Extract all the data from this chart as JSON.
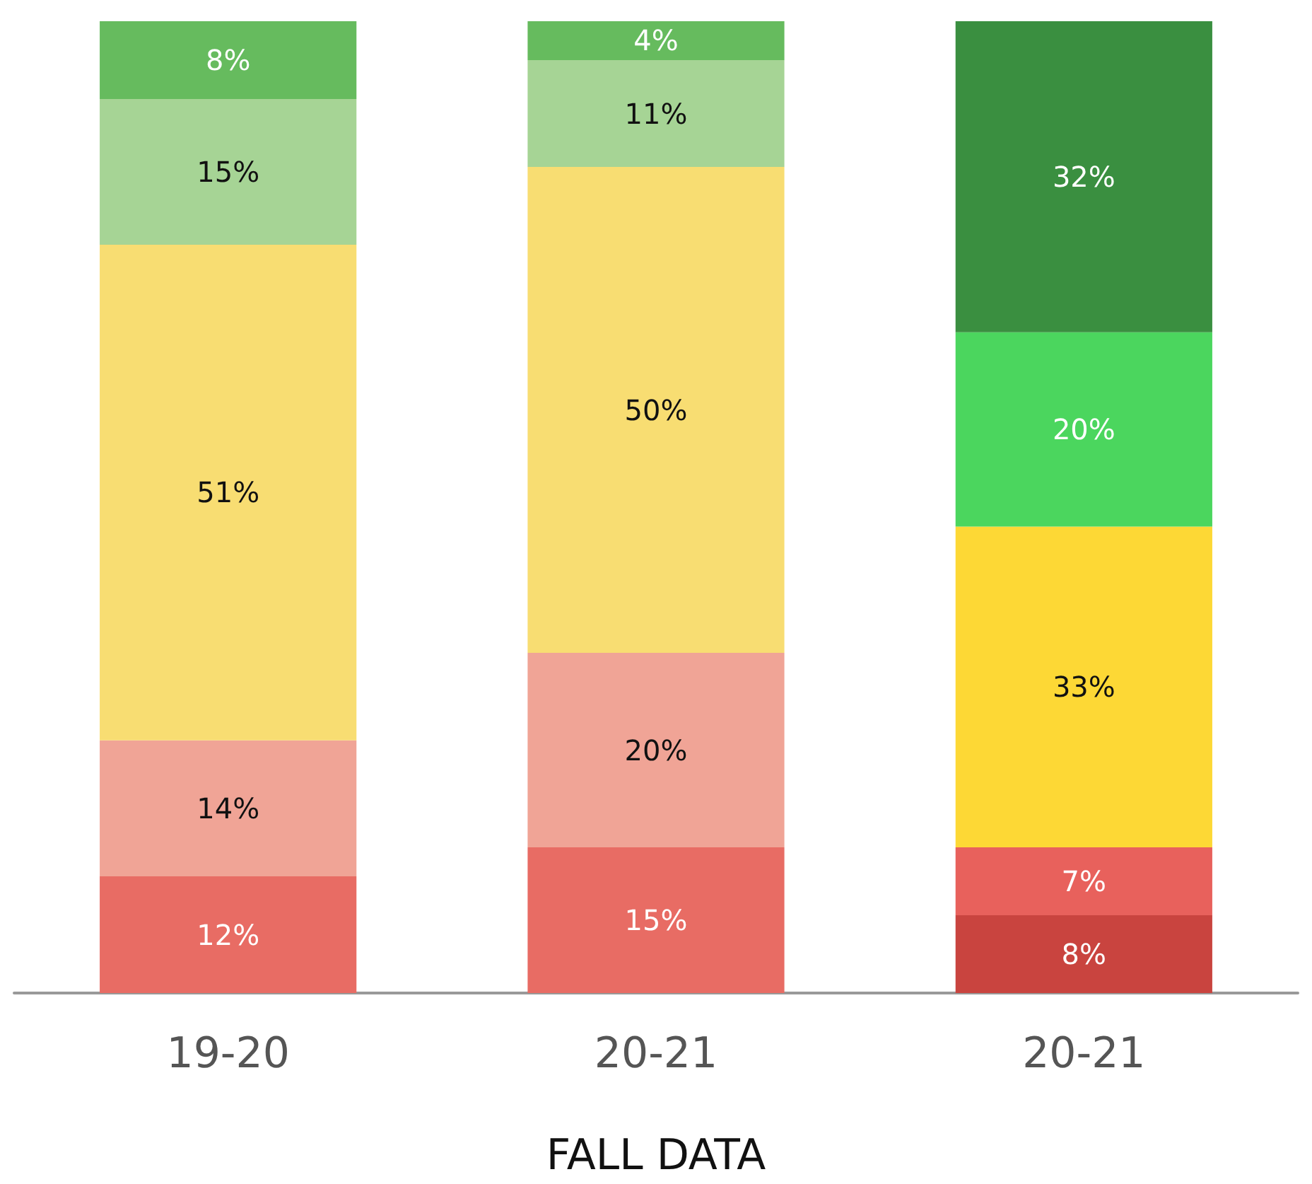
{
  "chart_data": {
    "type": "bar",
    "stacked": true,
    "xlabel": "FALL DATA",
    "categories": [
      "19-20",
      "20-21",
      "20-21"
    ],
    "series": [
      {
        "colors": [
          "#e86c64",
          "#e86c64",
          "#c9443f"
        ],
        "values": [
          12,
          15,
          8
        ],
        "value_labels": [
          "12%",
          "15%",
          "8%"
        ]
      },
      {
        "colors": [
          "#f0a496",
          "#f0a496",
          "#e8615c"
        ],
        "values": [
          14,
          20,
          7
        ],
        "value_labels": [
          "14%",
          "20%",
          "7%"
        ]
      },
      {
        "colors": [
          "#f8dd72",
          "#f8dd72",
          "#fdd835"
        ],
        "values": [
          51,
          50,
          33
        ],
        "value_labels": [
          "51%",
          "50%",
          "33%"
        ]
      },
      {
        "colors": [
          "#a6d495",
          "#a6d495",
          "#4bd65e"
        ],
        "values": [
          15,
          11,
          20
        ],
        "value_labels": [
          "15%",
          "11%",
          "20%"
        ]
      },
      {
        "colors": [
          "#66bb5e",
          "#66bb5e",
          "#3a8f40"
        ],
        "values": [
          8,
          4,
          32
        ],
        "value_labels": [
          "8%",
          "4%",
          "32%"
        ]
      }
    ]
  }
}
